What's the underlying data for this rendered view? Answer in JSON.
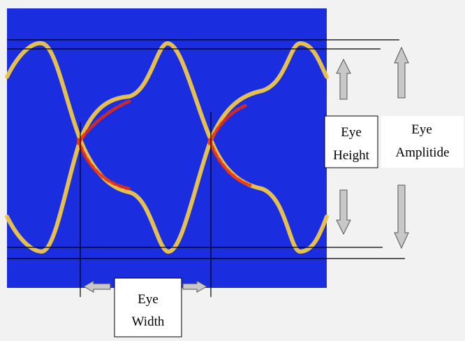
{
  "labels": {
    "eye_height": [
      "Eye",
      "Height"
    ],
    "eye_amplitude": [
      "Eye",
      "Amplitide"
    ],
    "eye_width": [
      "Eye",
      "Width"
    ]
  }
}
